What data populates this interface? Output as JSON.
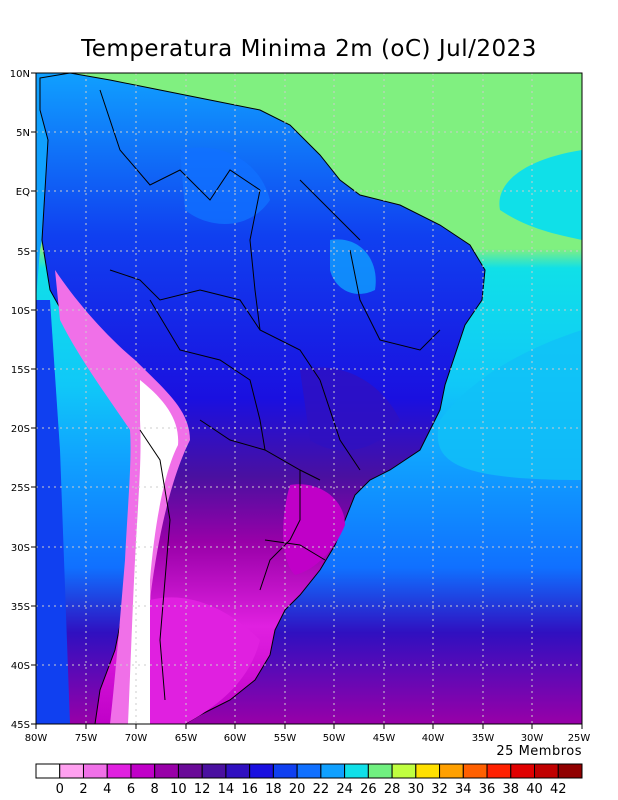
{
  "title": "Temperatura Minima 2m (oC) Jul/2023",
  "members_label": "25 Membros",
  "lat_labels": [
    "10N",
    "5N",
    "EQ",
    "5S",
    "10S",
    "15S",
    "20S",
    "25S",
    "30S",
    "35S",
    "40S",
    "45S"
  ],
  "lon_labels": [
    "80W",
    "75W",
    "70W",
    "65W",
    "60W",
    "55W",
    "50W",
    "45W",
    "40W",
    "35W",
    "30W",
    "25W"
  ],
  "colorbar": {
    "labels": [
      "0",
      "2",
      "4",
      "6",
      "8",
      "10",
      "12",
      "14",
      "16",
      "18",
      "20",
      "22",
      "24",
      "26",
      "28",
      "30",
      "32",
      "34",
      "36",
      "38",
      "40",
      "42"
    ],
    "colors": [
      "#ffffff",
      "#ffa0f0",
      "#f070e8",
      "#e020e0",
      "#c000c8",
      "#9800a8",
      "#6a0a98",
      "#4a10a0",
      "#3010c0",
      "#1a10e0",
      "#1040f0",
      "#1070ff",
      "#10a0ff",
      "#10e0e8",
      "#70f080",
      "#c0ff40",
      "#ffe000",
      "#ffa000",
      "#ff6000",
      "#ff2000",
      "#e00000",
      "#c00000",
      "#900000"
    ]
  },
  "colors": {
    "ocean_north": "#80f080",
    "ocean_mid": "#10e0e8",
    "ocean_south": "#10a0ff"
  }
}
